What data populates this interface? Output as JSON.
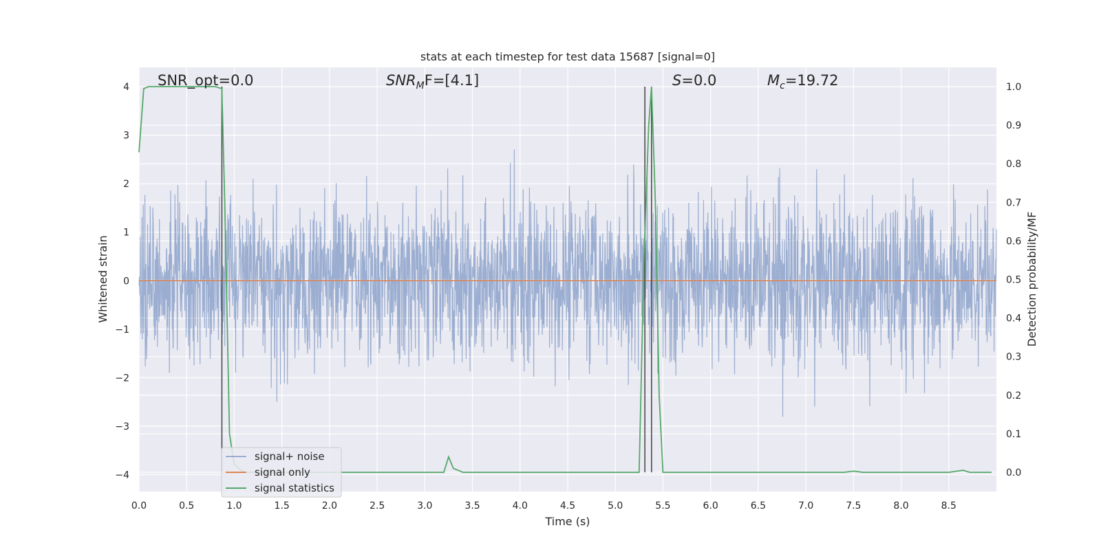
{
  "chart_data": {
    "type": "line",
    "title": "stats at each timestep for test data 15687 [signal=0]",
    "xlabel": "Time (s)",
    "ylabel_left": "Whitened strain",
    "ylabel_right": "Detection probability/MF",
    "xlim": [
      0.0,
      9.0
    ],
    "ylim_left": [
      -4.35,
      4.4
    ],
    "ylim_right": [
      -0.05,
      1.05
    ],
    "x_ticks": [
      "0.0",
      "0.5",
      "1.0",
      "1.5",
      "2.0",
      "2.5",
      "3.0",
      "3.5",
      "4.0",
      "4.5",
      "5.0",
      "5.5",
      "6.0",
      "6.5",
      "7.0",
      "7.5",
      "8.0",
      "8.5"
    ],
    "y_ticks_left": [
      "−4",
      "−3",
      "−2",
      "−1",
      "0",
      "1",
      "2",
      "3",
      "4"
    ],
    "y_ticks_right": [
      "0.0",
      "0.1",
      "0.2",
      "0.3",
      "0.4",
      "0.5",
      "0.6",
      "0.7",
      "0.8",
      "0.9",
      "1.0"
    ],
    "grid": true,
    "background": "#eaeaf2",
    "annotations": {
      "snr_opt": "SNR_opt=0.0",
      "snr_mf_italic": "SNR",
      "snr_mf_sub": "M",
      "snr_mf_rest": "F=[4.1]",
      "s_italic": "S",
      "s_rest": "=0.0",
      "mc_italic": "M",
      "mc_sub": "c",
      "mc_rest": "=19.72"
    },
    "vertical_lines_x": [
      0.87,
      5.31,
      5.38
    ],
    "series": [
      {
        "name": "signal+ noise",
        "color": "#4c72b0",
        "axis": "left",
        "description_range": [
          -3.9,
          4.0
        ],
        "envelope": {
          "core_upper": 1.6,
          "core_lower": -1.5
        }
      },
      {
        "name": "signal only",
        "color": "#dd8452",
        "axis": "left",
        "x": [
          0.0,
          9.0
        ],
        "y": [
          0.0,
          0.0
        ]
      },
      {
        "name": "signal statistics",
        "color": "#55a868",
        "axis": "right",
        "x": [
          0.0,
          0.05,
          0.1,
          0.2,
          0.3,
          0.4,
          0.5,
          0.6,
          0.7,
          0.8,
          0.87,
          0.9,
          0.95,
          1.0,
          1.05,
          1.1,
          1.2,
          1.4,
          1.6,
          1.8,
          2.0,
          2.2,
          2.4,
          2.6,
          2.8,
          3.0,
          3.1,
          3.2,
          3.25,
          3.3,
          3.4,
          3.6,
          3.8,
          4.0,
          4.2,
          4.4,
          4.6,
          4.8,
          5.0,
          5.2,
          5.25,
          5.3,
          5.35,
          5.38,
          5.42,
          5.46,
          5.5,
          5.55,
          5.6,
          5.8,
          6.0,
          6.5,
          7.0,
          7.4,
          7.5,
          7.6,
          7.8,
          8.0,
          8.5,
          8.65,
          8.72,
          8.8,
          8.95
        ],
        "y": [
          0.83,
          0.995,
          1.0,
          1.0,
          1.0,
          1.0,
          1.0,
          1.0,
          1.0,
          1.0,
          0.995,
          0.7,
          0.1,
          0.02,
          0.01,
          0.0,
          0.0,
          0.0,
          0.0,
          0.0,
          0.0,
          0.0,
          0.0,
          0.0,
          0.0,
          0.0,
          0.0,
          0.0,
          0.04,
          0.01,
          0.0,
          0.0,
          0.0,
          0.0,
          0.0,
          0.0,
          0.0,
          0.0,
          0.0,
          0.0,
          0.0,
          0.55,
          0.9,
          1.0,
          0.7,
          0.2,
          0.0,
          0.0,
          0.0,
          0.0,
          0.0,
          0.0,
          0.0,
          0.0,
          0.003,
          0.0,
          0.0,
          0.0,
          0.0,
          0.005,
          0.0,
          0.0,
          0.0
        ]
      }
    ],
    "legend": {
      "position": "lower-left",
      "entries": [
        "signal+ noise",
        "signal only",
        "signal statistics"
      ]
    }
  }
}
